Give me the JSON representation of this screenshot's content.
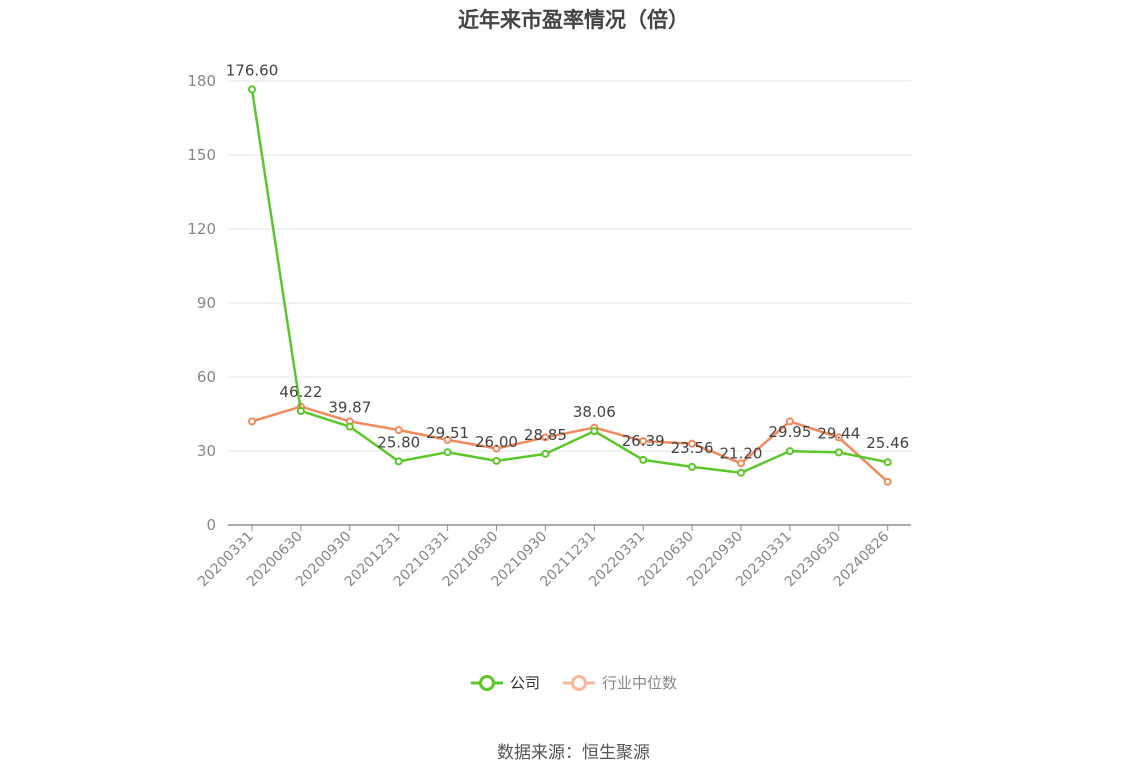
{
  "title": "近年来市盈率情况（倍）",
  "source": "数据来源：恒生聚源",
  "chart_data": {
    "type": "line",
    "categories": [
      "20200331",
      "20200630",
      "20200930",
      "20201231",
      "20210331",
      "20210630",
      "20210930",
      "20211231",
      "20220331",
      "20220630",
      "20220930",
      "20230331",
      "20230630",
      "20240826"
    ],
    "series": [
      {
        "name": "公司",
        "color": "#5bc72a",
        "values": [
          176.6,
          46.22,
          39.87,
          25.8,
          29.51,
          26.0,
          28.85,
          38.06,
          26.39,
          23.56,
          21.2,
          29.95,
          29.44,
          25.46
        ],
        "labels": [
          "176.60",
          "46.22",
          "39.87",
          "25.80",
          "29.51",
          "26.00",
          "28.85",
          "38.06",
          "26.39",
          "23.56",
          "21.20",
          "29.95",
          "29.44",
          "25.46"
        ]
      },
      {
        "name": "行业中位数",
        "color": "#f08a5d",
        "values": [
          42,
          48,
          42,
          38.5,
          34.5,
          31,
          35.5,
          39.5,
          34,
          33,
          25,
          42,
          35.5,
          17.5
        ]
      }
    ],
    "yticks": [
      "0",
      "30",
      "60",
      "90",
      "120",
      "150",
      "180"
    ],
    "ylim": [
      0,
      180
    ],
    "grid": true,
    "legend_position": "bottom"
  }
}
